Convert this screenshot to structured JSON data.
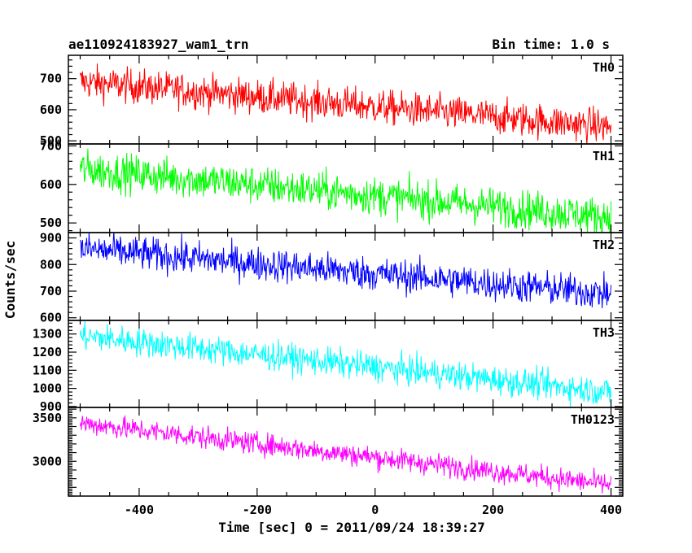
{
  "chart_data": {
    "type": "line",
    "title": "ae110924183927_wam1_trn",
    "bin_label": "Bin time: 1.0 s",
    "xlabel": "Time [sec] 0 = 2011/09/24 18:39:27",
    "ylabel": "Counts/sec",
    "xlim": [
      -520,
      420
    ],
    "x_ticks": [
      "-400",
      "-200",
      "0",
      "200",
      "400"
    ],
    "x_range": [
      -500,
      400
    ],
    "grid": false,
    "panels": [
      {
        "name": "TH0",
        "color": "#ff0000",
        "ylim": [
          490,
          775
        ],
        "y_ticks": [
          "700",
          "600",
          "500"
        ],
        "start": 690,
        "end": 545,
        "noise": 28
      },
      {
        "name": "TH1",
        "color": "#00ff00",
        "ylim": [
          475,
          705
        ],
        "y_ticks": [
          "700",
          "600",
          "500"
        ],
        "start": 640,
        "end": 515,
        "noise": 25
      },
      {
        "name": "TH2",
        "color": "#0000ff",
        "ylim": [
          590,
          920
        ],
        "y_ticks": [
          "900",
          "800",
          "700",
          "600"
        ],
        "start": 860,
        "end": 690,
        "noise": 32
      },
      {
        "name": "TH3",
        "color": "#00ffff",
        "ylim": [
          895,
          1375
        ],
        "y_ticks": [
          "1300",
          "1200",
          "1100",
          "1000",
          "900"
        ],
        "start": 1290,
        "end": 980,
        "noise": 40
      },
      {
        "name": "TH0123",
        "color": "#ff00ff",
        "ylim": [
          2600,
          3620
        ],
        "y_ticks": [
          "3500",
          "3000"
        ],
        "start": 3440,
        "end": 2730,
        "noise": 65
      }
    ]
  }
}
